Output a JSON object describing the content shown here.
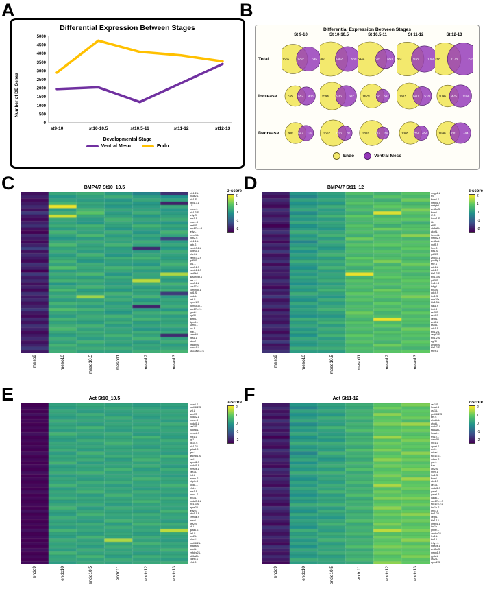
{
  "figure": {
    "panel_letters": [
      "A",
      "B",
      "C",
      "D",
      "E",
      "F"
    ]
  },
  "chart_data": [
    {
      "id": "A",
      "type": "line",
      "title": "Differential Expression Between Stages",
      "xlabel": "Developmental Stage",
      "ylabel": "Number of DE Genes",
      "categories": [
        "st9-10",
        "st10-10.5",
        "st10.5-11",
        "st11-12",
        "st12-13"
      ],
      "ylim": [
        0,
        5000
      ],
      "yticks": [
        0,
        500,
        1000,
        1500,
        2000,
        2500,
        3000,
        3500,
        4000,
        4500,
        5000
      ],
      "grid": false,
      "legend_position": "bottom",
      "series": [
        {
          "name": "Ventral Meso",
          "color": "#7030a0",
          "values": [
            1950,
            2050,
            1200,
            2300,
            3400
          ]
        },
        {
          "name": "Endo",
          "color": "#ffc000",
          "values": [
            2900,
            4750,
            4100,
            3900,
            3550
          ]
        }
      ]
    },
    {
      "id": "B",
      "type": "venn-table",
      "title": "Differential Expression Between Stages",
      "columns": [
        "St 9-10",
        "St 10-10.5",
        "St 10.5-11",
        "St 11-12",
        "St 12-13"
      ],
      "rows": [
        "Total",
        "Increase",
        "Decrease"
      ],
      "legend": [
        {
          "label": "Endo",
          "color": "#f3e96d"
        },
        {
          "label": "Ventral Meso",
          "color": "#9437b8"
        }
      ],
      "venns": [
        [
          {
            "endo_only": 1565,
            "shared": 1297,
            "meso_only": 645
          },
          {
            "endo_only": 3383,
            "shared": 1462,
            "meso_only": 589
          },
          {
            "endo_only": 3444,
            "shared": 565,
            "meso_only": 650
          },
          {
            "endo_only": 2861,
            "shared": 938,
            "meso_only": 1366
          },
          {
            "endo_only": 2288,
            "shared": 1178,
            "meso_only": 2264
          }
        ],
        [
          {
            "endo_only": 735,
            "shared": 652,
            "meso_only": 438
          },
          {
            "endo_only": 1594,
            "shared": 936,
            "meso_only": 502
          },
          {
            "endo_only": 1629,
            "shared": 258,
            "meso_only": 342
          },
          {
            "endo_only": 1615,
            "shared": 640,
            "meso_only": 518
          },
          {
            "endo_only": 1096,
            "shared": 475,
            "meso_only": 1168
          }
        ],
        [
          {
            "endo_only": 806,
            "shared": 647,
            "meso_only": 139
          },
          {
            "endo_only": 1662,
            "shared": 613,
            "meso_only": 87
          },
          {
            "endo_only": 1816,
            "shared": 287,
            "meso_only": 194
          },
          {
            "endo_only": 1385,
            "shared": 259,
            "meso_only": 454
          },
          {
            "endo_only": 1048,
            "shared": 681,
            "meso_only": 744
          }
        ]
      ]
    },
    {
      "id": "C",
      "type": "heatmap",
      "title": "BMP4/7 St10_10.5",
      "colorbar_title": "z-score",
      "colorbar_ticks": [
        2,
        1,
        0,
        -1,
        -2
      ],
      "zlim": [
        -2,
        2
      ],
      "columns": [
        "meso9",
        "meso10",
        "meso10.5",
        "meso11",
        "meso12",
        "meso13"
      ],
      "genes": [
        "bix1.2.L",
        "plscr2.L",
        "bix1.S",
        "hbx1.3.L",
        "t.S",
        "mixer.L",
        "bix1.3.S",
        "lefty.S",
        "mix1.S",
        "msx1.S",
        "esr6.S",
        "sox17b.1.S",
        "lefty.L",
        "ment1.L",
        "npb2.S",
        "bix1.1.L",
        "tgfb.S",
        "ventx3.2.L",
        "tube1a.L",
        "shelf.L",
        "ventx3.2.S",
        "gdf5.S",
        "3lf1.L",
        "hes7.2.S",
        "ventx1.1.S",
        "smt1b.L",
        "aasdhppt.S",
        "esr-A.L",
        "hes7.2.L",
        "sox17a.L",
        "commd5.L",
        "bct1.S",
        "nodr.L",
        "het.S",
        "pgrm1.S",
        "hpm1p30.L",
        "sox17b.2.L",
        "lypd6.L",
        "npr51.L",
        "apfb.L",
        "dpm3.L",
        "som3.L",
        "fos.S",
        "mib.L",
        "samt6.L",
        "hes1.L",
        "ptoo7.L",
        "psap9.S",
        "pwn16.L",
        "slc22a16.2.S"
      ],
      "rows": [
        "-1.8,0.4,0.5,0.2,-0.2,-1.4",
        "-1.6,0.1,0.3,0.5,0.2,0.0",
        "-1.9,0.3,0.2,0.1,0.4,0.3",
        "-1.7,0.6,0.4,0.3,0.1,-1.6",
        "-1.5,1.9,0.3,0.1,0.2,0.4",
        "-1.8,0.2,0.6,0.4,0.3,0.1",
        "-1.3,0.5,0.9,0.2,0.5,0.2",
        "-1.7,1.7,0.4,0.3,0.1,0.3",
        "-1.9,0.4,0.2,0.6,0.4,0.5",
        "-1.6,0.3,0.1,0.4,0.2,0.1",
        "-1.4,0.5,0.6,0.3,0.6,0.4",
        "-1.8,0.2,0.4,0.1,0.3,0.2",
        "-2.0,0.6,0.3,0.5,0.1,0.6",
        "-1.5,0.3,0.7,0.2,0.4,0.3",
        "-1.7,0.1,0.2,0.4,0.2,-1.2",
        "-1.9,0.4,0.5,0.3,0.5,0.2",
        "-1.6,0.7,0.3,0.6,0.3,0.4",
        "-1.2,0.3,0.4,0.2,-1.5,0.1",
        "-1.8,0.5,0.2,0.3,0.2,0.5",
        "-1.5,0.2,0.6,0.1,0.4,0.3",
        "-1.7,0.4,0.3,0.5,0.6,0.2",
        "-1.9,0.6,0.1,0.3,0.3,0.4",
        "-1.4,0.3,0.5,0.2,0.1,0.6",
        "-1.6,0.8,0.4,0.6,0.5,0.3",
        "-2.0,0.2,0.3,0.4,0.2,0.1",
        "-1.3,0.5,0.7,0.1,0.4,1.5",
        "-1.7,0.3,0.2,0.5,0.3,0.4",
        "-1.5,0.6,0.5,0.3,1.6,0.2",
        "-1.8,0.1,0.3,0.2,0.5,0.6",
        "-1.6,0.4,0.6,0.4,0.2,0.3",
        "-1.9,0.7,0.2,0.1,0.4,0.5",
        "-1.4,0.3,0.4,0.6,0.3,-1.3",
        "-1.7,0.5,1.4,0.3,0.6,0.2",
        "-1.5,0.2,0.3,0.5,0.1,0.4",
        "-1.8,0.6,0.5,0.2,0.4,0.3",
        "-1.6,0.3,0.2,0.4,-1.6,0.5",
        "-1.3,0.8,0.6,0.3,0.2,0.1",
        "-1.7,0.4,0.3,0.1,0.5,0.6",
        "-1.9,0.2,0.5,0.6,0.3,0.2",
        "-1.5,0.6,0.4,0.3,0.6,0.4",
        "-1.8,0.3,0.2,0.5,0.2,0.3",
        "-1.4,0.5,0.6,0.2,0.4,0.5",
        "-1.6,0.7,0.3,0.4,0.1,0.2",
        "-1.9,0.4,0.5,0.3,0.5,0.4",
        "-1.7,0.2,0.4,0.6,0.3,-1.5",
        "-1.5,0.5,0.2,0.3,0.6,0.3",
        "-1.8,0.3,0.6,0.4,0.2,0.5",
        "-1.6,0.6,0.3,0.2,0.4,0.2",
        "-1.3,0.4,0.5,0.5,0.3,0.4",
        "-1.7,0.5,0.3,0.3,0.5,0.6"
      ]
    },
    {
      "id": "D",
      "type": "heatmap",
      "title": "BMP4/7 St11_12",
      "colorbar_title": "z-score",
      "colorbar_ticks": [
        2,
        1,
        0,
        -1,
        -2
      ],
      "zlim": [
        -2,
        2
      ],
      "columns": [
        "meso9",
        "meso10",
        "meso10.5",
        "meso11",
        "meso12",
        "meso13"
      ],
      "genes": [
        "msgn1.L",
        "t.S",
        "foxa4.S",
        "msgn1.S",
        "metpb.L",
        "wnt8a.S",
        "foxa4.L",
        "t2.S",
        "hoxd1.S",
        "t.L",
        "slf.S",
        "slc5a8.L",
        "aknf.L",
        "hcmbt.L",
        "msgn2.S",
        "wnt8a.L",
        "myf5.S",
        "frzb.S",
        "bix1.S",
        "gdf3.S",
        "znf563.L",
        "pox8fp.L",
        "sne.S",
        "cdx1.L",
        "cdx2.S",
        "bix1.3.S",
        "tbx1.3.S",
        "gdf5.S",
        "fzd10.S",
        "tpfig.L",
        "tbx3.S",
        "cdx4.S",
        "tbx1.S",
        "rbm20a.L",
        "bix1.3.L",
        "has1.S",
        "tbxt.S",
        "esr5.S",
        "esrA.S",
        "vegt.L",
        "wnt8.L",
        "esr5.L",
        "cdx1.S",
        "tbx1.2.L",
        "vegt.2.S",
        "tbx1.2.S",
        "egr3.L",
        "wnt8b.S",
        "bix1.2.S",
        "shelf.L"
      ],
      "rows": [
        "-1.6,0.1,0.3,0.8,0.6,0.9",
        "-1.8,-0.2,0.2,0.5,0.9,0.7",
        "-1.5,0.3,0.4,0.7,0.5,1.1",
        "-1.7,0.0,0.1,0.9,0.8,0.6",
        "-1.9,0.2,0.5,0.6,1.0,0.8",
        "-1.4,0.4,0.2,0.8,0.7,1.2",
        "-1.6,-0.1,0.3,0.5,1.8,0.9",
        "-1.8,0.3,0.6,1.0,0.6,0.7",
        "-1.5,0.1,0.2,0.7,0.9,1.0",
        "-1.7,0.4,0.4,0.6,0.8,0.5",
        "-2.0,0.0,0.3,0.9,0.5,0.8",
        "-1.6,0.2,0.1,0.7,1.1,0.9",
        "-1.4,0.5,0.4,0.8,0.6,0.7",
        "-1.8,0.1,0.6,0.5,0.9,1.3",
        "-1.6,0.3,0.2,1.1,0.7,0.6",
        "-1.9,-0.2,0.5,0.6,0.8,0.9",
        "-1.5,0.2,0.3,0.9,1.0,0.8",
        "-1.7,0.4,0.1,0.7,0.6,1.0",
        "-1.3,0.0,0.4,0.8,0.9,0.7",
        "-1.8,0.3,0.6,0.6,0.7,0.9",
        "-1.6,0.1,0.2,1.0,0.8,0.6",
        "-1.4,0.5,0.5,0.7,1.2,0.8",
        "-1.9,0.2,0.3,0.9,0.6,1.1",
        "-1.5,0.0,0.6,0.5,0.9,0.7",
        "-1.7,0.3,0.2,0.8,0.7,0.9",
        "-1.6,0.1,0.4,1.9,0.8,0.6",
        "-1.8,0.4,0.3,0.6,1.0,0.8",
        "-1.4,0.2,0.5,0.9,0.7,1.0",
        "-1.6,0.0,0.2,0.7,0.9,0.8",
        "-1.9,0.3,0.4,0.8,0.6,0.9",
        "-1.5,0.1,0.6,0.6,1.1,0.7",
        "-1.7,0.5,0.3,1.0,0.8,0.9",
        "-1.3,0.2,0.1,0.7,0.9,1.2",
        "-1.8,0.0,0.5,0.9,0.6,0.8",
        "-1.6,0.4,0.2,0.6,1.0,0.7",
        "-1.4,0.1,0.4,0.8,0.7,0.9",
        "-1.9,0.3,0.6,0.7,0.9,0.6",
        "-1.5,0.2,0.3,1.1,0.6,1.0",
        "-1.7,0.0,0.1,0.8,0.8,0.7",
        "-1.6,0.5,0.4,0.6,1.9,0.9",
        "-1.8,0.2,0.6,0.9,0.7,0.8",
        "-1.4,0.4,0.2,0.7,1.0,0.6",
        "-1.6,0.1,0.5,0.8,0.6,1.1",
        "-1.9,0.3,0.3,0.6,0.9,0.8",
        "-1.5,0.0,0.6,1.0,0.7,0.9",
        "-1.7,0.4,0.2,0.7,0.8,0.7",
        "-1.3,0.2,0.4,0.9,0.6,1.0",
        "-1.8,0.1,0.3,0.6,1.1,0.8",
        "-1.6,0.5,0.5,0.8,0.7,0.6",
        "-1.4,0.2,0.2,0.7,0.9,1.0"
      ]
    },
    {
      "id": "E",
      "type": "heatmap",
      "title": "Act St10_10.5",
      "colorbar_title": "z-score",
      "colorbar_ticks": [
        2,
        1,
        0,
        -1,
        -2
      ],
      "zlim": [
        -2,
        2
      ],
      "columns": [
        "endo9",
        "endo10",
        "endo10.5",
        "endo11",
        "endo12",
        "endo13"
      ],
      "genes": [
        "foxa4.S",
        "pcdh8.2.S",
        "fzd.L",
        "aanf.S",
        "nodal2.L",
        "mixer.S",
        "nodal1.L",
        "cer1.S",
        "pcdh8.L",
        "mespb.S",
        "mix1.L",
        "tgr1.L",
        "tdf15.S",
        "bix1.2.L",
        "gata4.S",
        "gsc.L",
        "ascmp1.S",
        "cml.L",
        "apnst2.S",
        "nodal1.S",
        "mespb.L",
        "cer1.L",
        "fir3.L",
        "admp.S",
        "bbpls.S",
        "foxa1.L",
        "cfrd.L",
        "mix1.S",
        "bmx1.S",
        "tbx3.L",
        "nodal3.1.L",
        "bix1.3.S",
        "apns2.L",
        "lefty.S",
        "hbx1.1.S",
        "chmak.S",
        "mixr.L",
        "osr2.S",
        "vill.L",
        "gata6.S",
        "fir3.S",
        "osr2.L",
        "plac2.L",
        "pcdh8.2.L",
        "wnt8a.S",
        "lusd.L",
        "znfdec2.L",
        "slc5a8.L",
        "cldn6.S",
        "cfrd.S"
      ],
      "rows": [
        "-2.0,0.3,0.4,0.3,0.2,0.3",
        "-1.9,0.2,0.3,0.4,0.3,0.2",
        "-2.0,0.4,0.2,0.3,0.4,0.4",
        "-1.8,0.3,0.5,0.2,0.3,0.3",
        "-2.0,0.2,0.3,0.5,0.2,0.4",
        "-1.9,0.5,0.4,0.3,0.4,0.2",
        "-2.0,0.3,0.2,0.4,0.3,0.5",
        "-1.9,0.4,0.6,0.3,0.5,0.3",
        "-2.0,0.2,0.3,0.2,0.3,0.4",
        "-1.8,0.6,0.4,0.5,0.2,0.3",
        "-2.0,0.3,0.2,0.3,0.6,0.2",
        "-1.9,0.2,0.5,0.4,0.3,0.5",
        "-2.0,0.4,0.3,0.6,0.4,0.3",
        "-1.9,0.3,0.4,0.3,0.2,0.4",
        "-2.0,0.5,0.2,0.4,0.5,0.3",
        "-1.8,0.2,0.6,0.3,0.3,0.2",
        "-2.0,0.4,0.3,0.5,0.4,0.6",
        "-1.9,0.3,0.5,0.2,0.6,0.3",
        "-2.0,0.6,0.2,0.4,0.3,0.4",
        "-1.9,0.2,0.4,0.3,0.5,0.2",
        "-2.0,0.3,0.3,0.6,0.2,0.5",
        "-1.8,0.5,0.6,0.3,0.4,0.3",
        "-2.0,0.2,0.3,0.4,0.3,0.2",
        "-1.9,0.4,0.2,0.3,0.6,0.4",
        "-2.0,0.3,0.5,0.5,0.3,0.3",
        "-1.9,0.6,0.3,0.2,0.4,0.6",
        "-2.0,0.2,0.4,0.4,0.2,0.3",
        "-1.8,0.4,0.6,0.3,0.5,0.4",
        "-2.0,0.3,0.2,0.6,0.3,0.2",
        "-1.9,0.5,0.4,0.3,0.4,0.5",
        "-2.0,0.2,0.3,0.4,0.6,0.3",
        "-1.9,0.4,0.5,0.2,0.3,0.4",
        "-2.0,0.6,0.2,0.5,0.4,0.3",
        "-1.8,0.3,0.4,0.3,0.2,0.6",
        "-2.0,0.2,0.6,0.4,0.5,0.3",
        "-1.9,0.5,0.3,0.3,0.3,0.4",
        "-2.0,0.3,0.2,0.6,0.4,0.2",
        "-1.9,0.4,0.5,0.2,0.6,0.5",
        "-2.0,0.2,0.3,0.5,0.3,0.3",
        "-1.8,0.6,0.4,0.3,0.4,1.6",
        "-2.0,0.3,0.2,0.4,0.2,0.4",
        "-1.9,0.2,0.6,0.3,0.5,0.3",
        "-2.0,0.5,0.3,1.5,0.3,0.2",
        "-1.9,0.3,0.4,0.3,0.6,0.4",
        "-2.0,0.4,0.2,0.5,0.3,0.3",
        "-1.8,0.2,0.5,0.3,0.4,0.6",
        "-2.0,0.6,0.3,0.4,0.2,0.3",
        "-1.9,0.3,0.6,0.2,0.5,0.4",
        "-2.0,0.4,0.3,0.5,0.3,0.2",
        "-1.9,0.2,0.4,0.3,0.4,0.5"
      ]
    },
    {
      "id": "F",
      "type": "heatmap",
      "title": "Act St11-12",
      "colorbar_title": "z-score",
      "colorbar_ticks": [
        2,
        1,
        0,
        -1,
        -2
      ],
      "zlim": [
        -2,
        2
      ],
      "columns": [
        "endo9",
        "endo10",
        "endo10.5",
        "endo11",
        "endo12",
        "endo13"
      ],
      "genes": [
        "cer1.S",
        "foxa4.S",
        "osr1.L",
        "pcdh8.2.S",
        "eer.S",
        "chrd.b.L",
        "chrd.L",
        "nodal2.L",
        "slc5a8.L",
        "foxa4.L",
        "fzd10.L",
        "dand5.L",
        "mix1.L",
        "apnst.S",
        "cml.L",
        "mixer.L",
        "sox17a.L",
        "admp.S",
        "gsc.L",
        "frzb.L",
        "otx2.S",
        "hhex.L",
        "lhx1.S",
        "foxa2.L",
        "dkk1.S",
        "cer1.L",
        "nodal1.S",
        "gata4.L",
        "gata5.S",
        "gata6.L",
        "sox17b.1.S",
        "sox17b.2.L",
        "hnf1b.S",
        "grhl1.L",
        "tbx1.2.L",
        "vegt.L",
        "bix1.1.L",
        "dmbx1.L",
        "hnf1b.L",
        "gnpt2.L",
        "znfdec2.L",
        "fzd1.L",
        "tbx1.L",
        "lefty1.L",
        "mespb.L",
        "wnt8a.S",
        "msgn1.S",
        "gydc.L",
        "osr2.L",
        "apns2.S"
      ],
      "rows": [
        "-1.7,0.1,0.3,0.5,0.9,1.2",
        "-1.5,-0.2,0.2,0.4,1.1,0.8",
        "-1.8,0.3,0.4,0.6,0.8,1.0",
        "-1.6,0.0,0.1,0.5,1.3,0.9",
        "-1.9,0.2,0.5,0.7,0.9,1.1",
        "-1.4,0.4,0.3,0.4,1.0,0.7",
        "-1.7,-0.1,0.2,0.6,1.2,1.4",
        "-1.5,0.3,0.6,0.5,0.8,0.9",
        "-1.8,0.1,0.3,0.8,1.0,1.1",
        "-1.6,0.4,0.2,0.4,0.9,0.8",
        "-2.0,0.0,0.4,0.6,1.4,1.0",
        "-1.5,0.2,0.1,0.5,0.8,1.2",
        "-1.7,0.5,0.5,0.7,1.1,0.9",
        "-1.9,0.1,0.3,0.4,0.9,1.0",
        "-1.4,0.3,0.2,0.8,1.2,0.8",
        "-1.6,-0.2,0.6,0.5,0.8,1.3",
        "-1.8,0.2,0.3,0.6,1.0,0.9",
        "-1.5,0.4,0.1,0.4,1.3,1.1",
        "-1.7,0.0,0.4,0.7,0.9,0.8",
        "-1.9,0.3,0.5,0.5,1.1,1.0",
        "-1.4,0.1,0.2,0.8,0.8,1.2",
        "-1.6,0.5,0.6,0.4,1.0,0.9",
        "-1.8,0.2,0.3,0.6,1.2,0.8",
        "-1.5,0.0,0.4,0.5,0.9,1.4",
        "-1.7,0.3,0.2,0.7,1.0,0.9",
        "-1.9,0.1,0.5,0.4,1.5,1.0",
        "-1.4,0.4,0.3,0.6,0.8,1.1",
        "-1.6,0.2,0.6,0.5,1.1,0.8",
        "-1.8,0.0,0.2,0.8,0.9,1.0",
        "-1.5,0.3,0.4,0.4,1.2,1.2",
        "-1.7,0.1,0.3,0.6,0.8,0.9",
        "-1.9,0.5,0.6,0.5,1.0,1.1",
        "-1.4,0.2,0.2,0.7,1.3,0.8",
        "-1.6,0.0,0.5,0.4,0.9,1.0",
        "-1.8,0.4,0.3,0.6,1.1,1.3",
        "-1.5,0.1,0.1,0.5,0.8,0.9",
        "-1.7,0.3,0.4,0.8,1.0,1.1",
        "-1.9,0.2,0.6,0.4,1.2,0.8",
        "-1.4,0.0,0.3,0.6,0.9,1.0",
        "-1.6,0.5,0.2,0.5,1.6,1.2",
        "-1.8,0.2,0.5,0.7,0.8,0.9",
        "-1.5,0.4,0.3,0.4,1.1,1.0",
        "-1.7,0.1,0.6,0.6,0.9,1.3",
        "-1.9,0.3,0.2,0.5,1.0,0.8",
        "-1.4,0.0,0.4,0.8,1.2,1.1",
        "-1.6,0.4,0.3,0.4,0.9,0.9",
        "-1.8,0.2,0.5,0.6,1.1,1.0",
        "-1.5,0.1,0.2,0.5,0.8,1.2",
        "-1.7,0.5,0.4,0.7,1.0,0.9",
        "-1.9,0.2,0.3,0.4,1.3,1.0"
      ]
    }
  ]
}
